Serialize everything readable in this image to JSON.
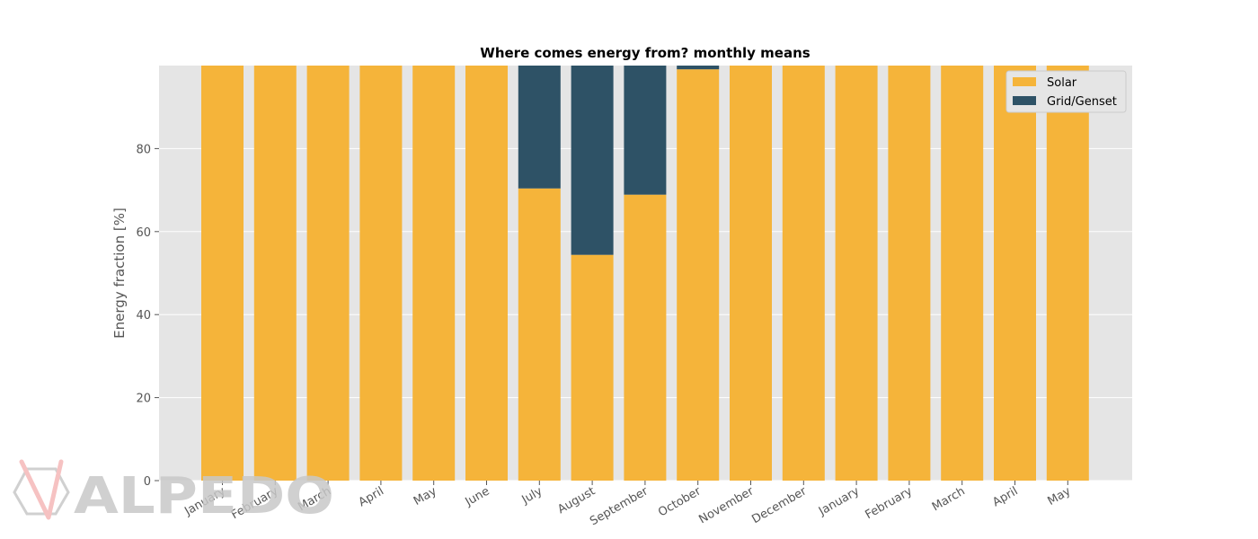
{
  "chart_data": {
    "type": "bar",
    "stacked": true,
    "title": "Where comes energy from? monthly means",
    "xlabel": "",
    "ylabel": "Energy fraction [%]",
    "ylim": [
      0,
      100
    ],
    "yticks": [
      0,
      20,
      40,
      60,
      80
    ],
    "grid": true,
    "legend_position": "top-right",
    "categories": [
      "January",
      "February",
      "March",
      "April",
      "May",
      "June",
      "July",
      "August",
      "September",
      "October",
      "November",
      "December",
      "January",
      "February",
      "March",
      "April",
      "May"
    ],
    "series": [
      {
        "name": "Solar",
        "color": "#f5b43a",
        "values": [
          100,
          100,
          100,
          100,
          100,
          100,
          70.4,
          54.4,
          68.9,
          99.1,
          100,
          100,
          100,
          100,
          100,
          100,
          100
        ]
      },
      {
        "name": "Grid/Genset",
        "color": "#2e5266",
        "values": [
          0,
          0,
          0,
          0,
          0,
          0,
          29.6,
          45.6,
          31.1,
          0.9,
          0,
          0,
          0,
          0,
          0,
          0,
          0
        ]
      }
    ]
  },
  "watermark": {
    "text": "ALPEDO",
    "icon": "hexagon-check-logo-icon"
  },
  "colors": {
    "plot_background": "#e5e5e5",
    "grid": "#ffffff"
  }
}
